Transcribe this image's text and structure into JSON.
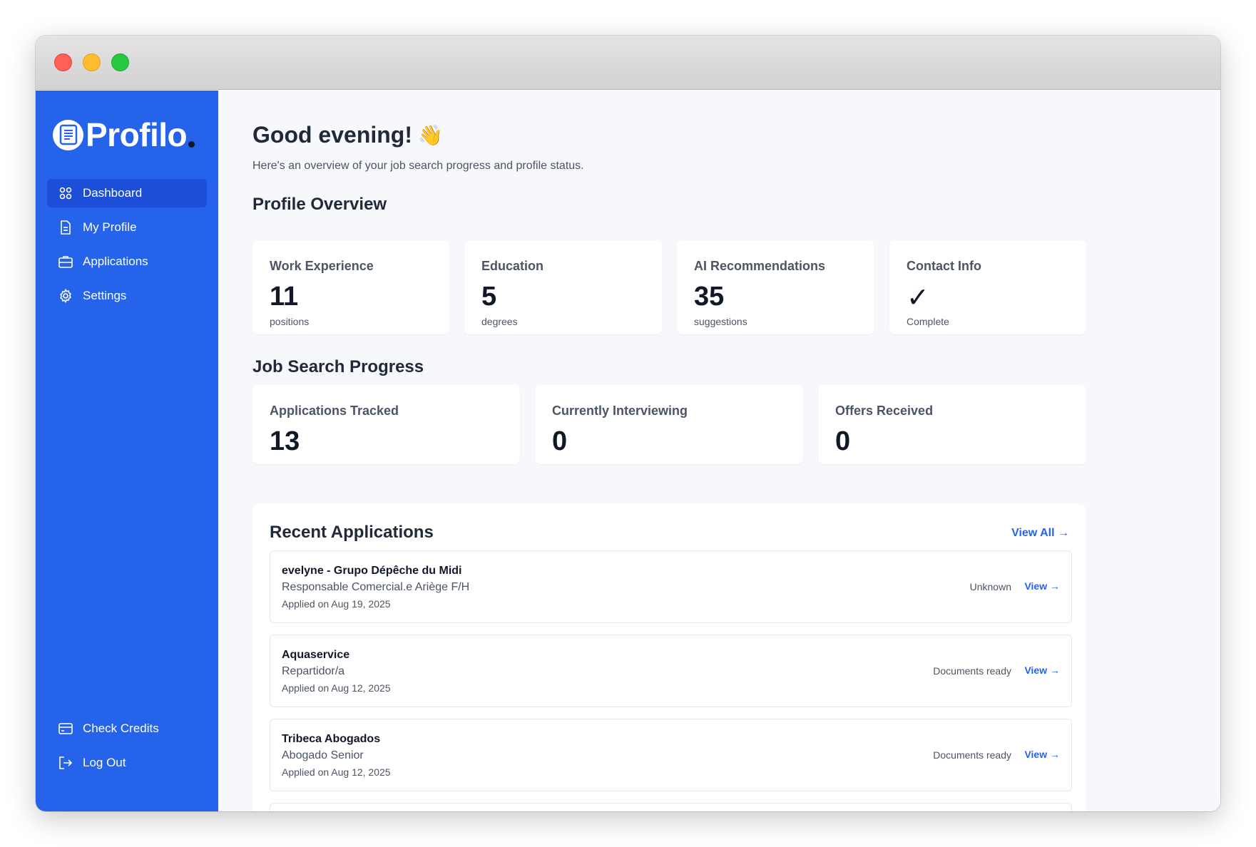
{
  "app": {
    "name": "Profilo"
  },
  "sidebar": {
    "items": [
      {
        "label": "Dashboard",
        "icon": "grid-icon",
        "active": true
      },
      {
        "label": "My Profile",
        "icon": "document-icon"
      },
      {
        "label": "Applications",
        "icon": "briefcase-icon"
      },
      {
        "label": "Settings",
        "icon": "gear-icon"
      }
    ],
    "bottom_items": [
      {
        "label": "Check Credits",
        "icon": "credit-card-icon"
      },
      {
        "label": "Log Out",
        "icon": "logout-icon"
      }
    ]
  },
  "header": {
    "greeting": "Good evening!",
    "wave": "👋",
    "subtitle": "Here's an overview of your job search progress and profile status."
  },
  "profile_overview": {
    "title": "Profile Overview",
    "cards": [
      {
        "label": "Work Experience",
        "value": "11",
        "sub": "positions"
      },
      {
        "label": "Education",
        "value": "5",
        "sub": "degrees"
      },
      {
        "label": "AI Recommendations",
        "value": "35",
        "sub": "suggestions"
      },
      {
        "label": "Contact Info",
        "value": "✓",
        "sub": "Complete"
      }
    ]
  },
  "job_progress": {
    "title": "Job Search Progress",
    "cards": [
      {
        "label": "Applications Tracked",
        "value": "13"
      },
      {
        "label": "Currently Interviewing",
        "value": "0"
      },
      {
        "label": "Offers Received",
        "value": "0"
      }
    ]
  },
  "recent_applications": {
    "title": "Recent Applications",
    "view_all": "View All →",
    "items": [
      {
        "company": "evelyne - Grupo Dépêche du Midi",
        "position": "Responsable Comercial.e Ariège F/H",
        "date": "Applied on Aug 19, 2025",
        "status": "Unknown",
        "view": "View →"
      },
      {
        "company": "Aquaservice",
        "position": "Repartidor/a",
        "date": "Applied on Aug 12, 2025",
        "status": "Documents ready",
        "view": "View →"
      },
      {
        "company": "Tribeca Abogados",
        "position": "Abogado Senior",
        "date": "Applied on Aug 12, 2025",
        "status": "Documents ready",
        "view": "View →"
      }
    ]
  },
  "colors": {
    "brand": "#2563eb",
    "brand_active": "#1d4ed8",
    "text": "#1f2937"
  }
}
